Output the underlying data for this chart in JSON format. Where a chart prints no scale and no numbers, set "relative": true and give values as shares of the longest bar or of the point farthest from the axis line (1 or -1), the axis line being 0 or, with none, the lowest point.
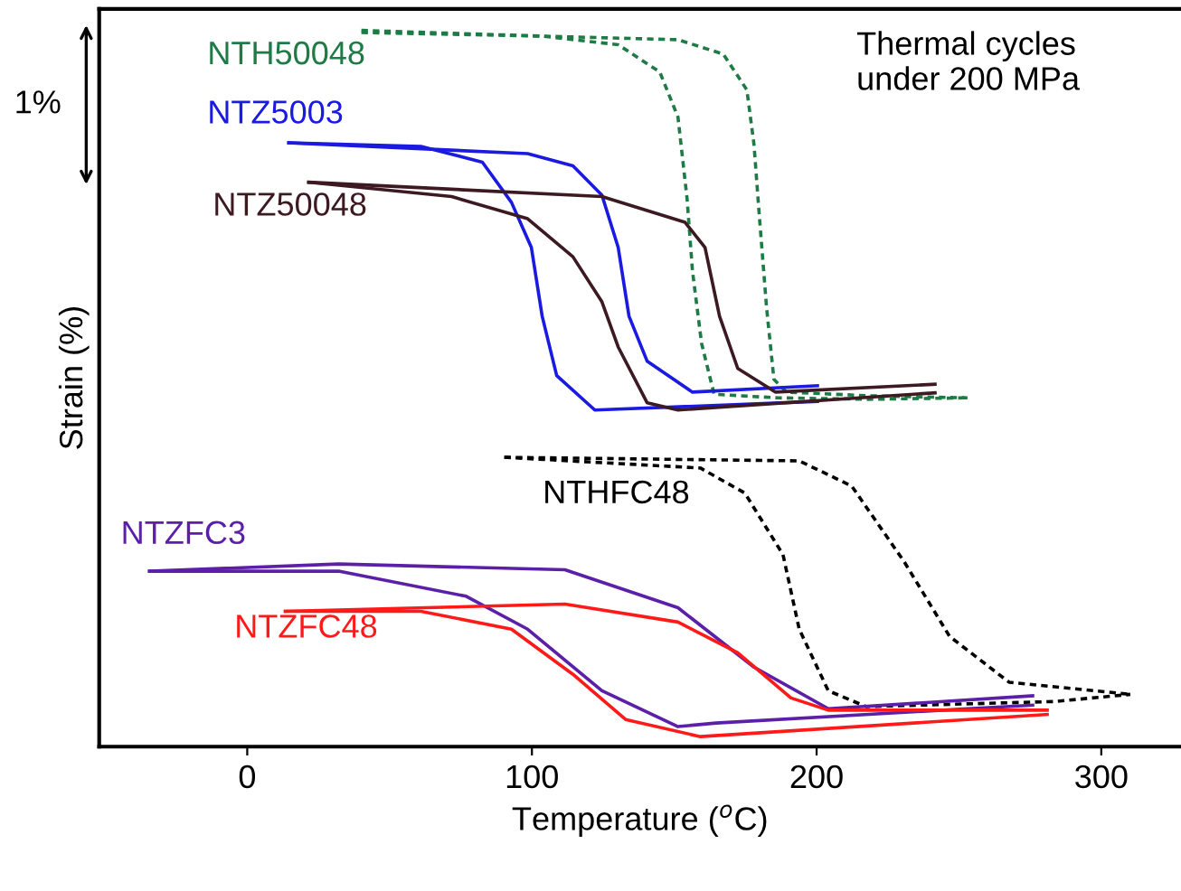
{
  "chart_data": {
    "type": "line",
    "relative": true,
    "xlabel": "Temperature ($^{o}$C)",
    "ylabel": "Strain (%)",
    "xlim": [
      -52,
      328
    ],
    "xticks": [
      0,
      100,
      200,
      300
    ],
    "grid": false,
    "legend": false,
    "marker": "none",
    "annotations": [
      "Thermal cycles\nunder 200 MPa",
      "1%"
    ],
    "series": [
      {
        "name": "NTH50048",
        "color": "#1e7b45",
        "line_style": "dotted",
        "x": [
          40.1,
          103.6,
          151.3,
          167.2,
          175.5,
          178.0,
          179.9,
          182.4,
          185.0,
          189.4,
          218.1,
          253.0
        ],
        "values": [
          1.0,
          0.992,
          0.987,
          0.967,
          0.917,
          0.841,
          0.74,
          0.614,
          0.513,
          0.495,
          0.49,
          0.487
        ]
      },
      {
        "color": "#1e7b45",
        "line_style": "dotted",
        "x": [
          40.1,
          103.6,
          130.3,
          144.9,
          151.3,
          154.5,
          156.4,
          159.6,
          164.0,
          186.3,
          218.1,
          253.0
        ],
        "values": [
          0.997,
          0.992,
          0.98,
          0.942,
          0.879,
          0.765,
          0.664,
          0.563,
          0.492,
          0.487,
          0.485,
          0.487
        ]
      },
      {
        "name": "NTZ5003",
        "color": "#1a1ae0",
        "line_style": "solid",
        "x": [
          14.6,
          98.5,
          114.4,
          124.6,
          130.3,
          134.1,
          140.5,
          156.4,
          200.3
        ],
        "values": [
          0.843,
          0.828,
          0.811,
          0.77,
          0.697,
          0.601,
          0.538,
          0.495,
          0.504
        ]
      },
      {
        "color": "#1a1ae0",
        "line_style": "solid",
        "x": [
          14.6,
          61.0,
          82.6,
          92.8,
          99.8,
          103.6,
          108.7,
          122.1,
          200.3
        ],
        "values": [
          0.843,
          0.838,
          0.816,
          0.76,
          0.697,
          0.601,
          0.518,
          0.47,
          0.482
        ]
      },
      {
        "name": "NTZ50048",
        "color": "#3d1a22",
        "line_style": "solid",
        "x": [
          21.6,
          124.6,
          153.8,
          160.8,
          165.9,
          172.3,
          185.6,
          241.6
        ],
        "values": [
          0.788,
          0.768,
          0.732,
          0.697,
          0.601,
          0.528,
          0.495,
          0.506
        ]
      },
      {
        "color": "#3d1a22",
        "line_style": "solid",
        "x": [
          21.6,
          71.8,
          98.5,
          114.4,
          124.6,
          130.3,
          140.5,
          151.3,
          241.6
        ],
        "values": [
          0.788,
          0.768,
          0.737,
          0.684,
          0.621,
          0.558,
          0.48,
          0.47,
          0.494
        ]
      },
      {
        "name": "NTHFC48",
        "color": "#000000",
        "line_style": "dotted",
        "x": [
          90.3,
          193.9,
          212.3,
          230.8,
          246.7,
          267.6,
          310.2
        ],
        "values": [
          0.404,
          0.399,
          0.364,
          0.258,
          0.154,
          0.09,
          0.073
        ]
      },
      {
        "color": "#000000",
        "line_style": "dotted",
        "x": [
          90.3,
          159.2,
          174.8,
          188.2,
          193.9,
          204.1,
          217.4,
          283.5,
          310.2
        ],
        "values": [
          0.404,
          0.389,
          0.354,
          0.268,
          0.164,
          0.078,
          0.056,
          0.063,
          0.073
        ]
      },
      {
        "name": "NTZFC3",
        "color": "#5b1fa8",
        "line_style": "solid",
        "x": [
          -34.3,
          32.1,
          111.6,
          151.3,
          178.0,
          204.1,
          275.9
        ],
        "values": [
          0.245,
          0.255,
          0.247,
          0.194,
          0.111,
          0.053,
          0.071
        ]
      },
      {
        "color": "#5b1fa8",
        "line_style": "solid",
        "x": [
          -34.3,
          32.1,
          76.9,
          98.5,
          124.6,
          151.3,
          164.7,
          275.9
        ],
        "values": [
          0.245,
          0.245,
          0.21,
          0.164,
          0.078,
          0.028,
          0.033,
          0.058
        ]
      },
      {
        "name": "NTZFC48",
        "color": "#ff1a1a",
        "line_style": "solid",
        "x": [
          13.4,
          111.6,
          151.3,
          172.3,
          191.0,
          204.1,
          281.0
        ],
        "values": [
          0.189,
          0.199,
          0.174,
          0.131,
          0.068,
          0.051,
          0.051
        ]
      },
      {
        "color": "#ff1a1a",
        "line_style": "solid",
        "x": [
          13.4,
          61.0,
          92.8,
          114.4,
          132.9,
          159.2,
          281.0
        ],
        "values": [
          0.189,
          0.189,
          0.164,
          0.101,
          0.038,
          0.014,
          0.045
        ]
      }
    ]
  }
}
